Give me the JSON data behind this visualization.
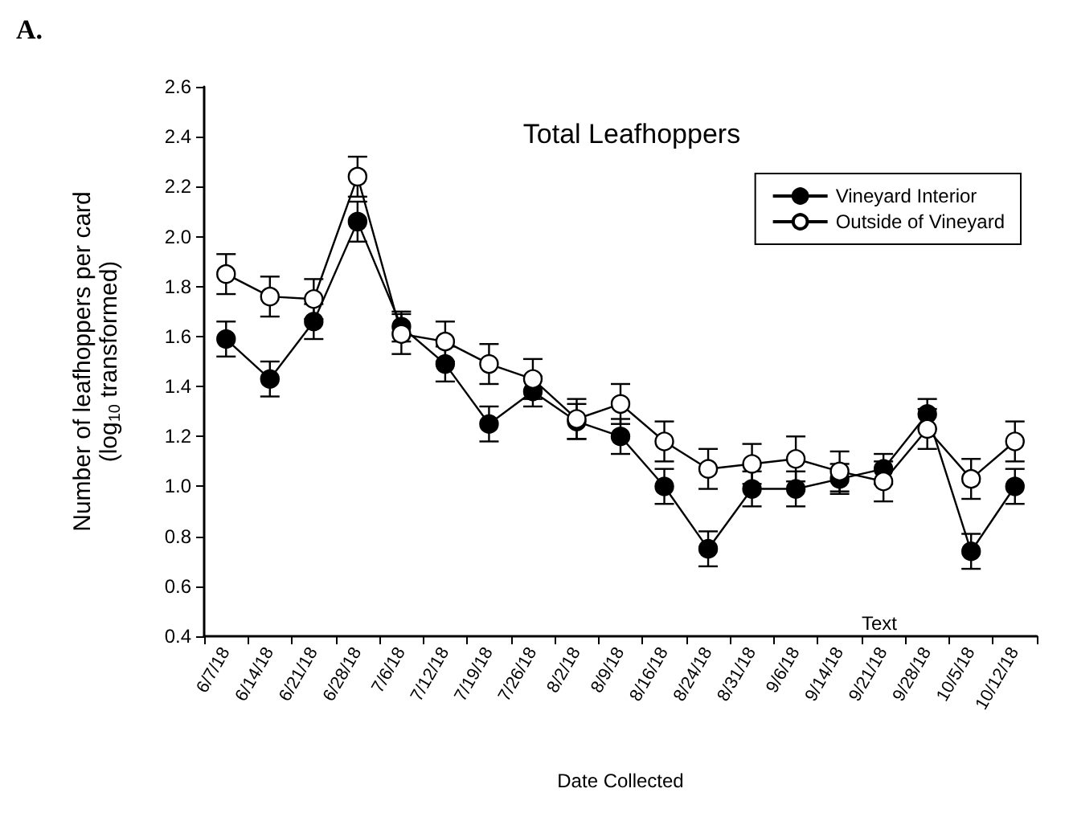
{
  "chart_data": {
    "type": "line",
    "title": "Total Leafhoppers",
    "xlabel": "Date Collected",
    "ylabel": "Number of leafhoppers per card\n(log$_{10}$ transformed)",
    "categories": [
      "6/7/18",
      "6/14/18",
      "6/21/18",
      "6/28/18",
      "7/6/18",
      "7/12/18",
      "7/19/18",
      "7/26/18",
      "8/2/18",
      "8/9/18",
      "8/16/18",
      "8/24/18",
      "8/31/18",
      "9/6/18",
      "9/14/18",
      "9/21/18",
      "9/28/18",
      "10/5/18",
      "10/12/18"
    ],
    "series": [
      {
        "name": "Vineyard Interior",
        "color": "#000000",
        "values": [
          1.59,
          1.43,
          1.66,
          2.06,
          1.64,
          1.49,
          1.25,
          1.38,
          1.26,
          1.2,
          1.0,
          0.75,
          0.99,
          0.99,
          1.03,
          1.07,
          1.29,
          0.74,
          1.0
        ],
        "errors": [
          0.07,
          0.07,
          0.07,
          0.08,
          0.06,
          0.07,
          0.07,
          0.06,
          0.07,
          0.07,
          0.07,
          0.07,
          0.07,
          0.07,
          0.06,
          0.06,
          0.06,
          0.07,
          0.07
        ]
      },
      {
        "name": "Outside of Vineyard",
        "color": "#ffffff",
        "values": [
          1.85,
          1.76,
          1.75,
          2.24,
          1.61,
          1.58,
          1.49,
          1.43,
          1.27,
          1.33,
          1.18,
          1.07,
          1.09,
          1.11,
          1.06,
          1.02,
          1.23,
          1.03,
          1.18
        ],
        "errors": [
          0.08,
          0.08,
          0.08,
          0.08,
          0.08,
          0.08,
          0.08,
          0.08,
          0.08,
          0.08,
          0.08,
          0.08,
          0.08,
          0.09,
          0.08,
          0.08,
          0.08,
          0.08,
          0.08
        ]
      }
    ],
    "ylim": [
      0.4,
      2.6
    ],
    "yticks": [
      0.4,
      0.6,
      0.8,
      {
        "value": 1,
        "label": "1.0"
      },
      1.2,
      1.4,
      1.6,
      1.8,
      {
        "value": 2,
        "label": "2.0"
      },
      2.2,
      2.4,
      2.6
    ],
    "annotations": [
      "A.",
      "Text"
    ],
    "grid": false,
    "legend": "top right",
    "marker": "circle",
    "line_style": "solid"
  }
}
